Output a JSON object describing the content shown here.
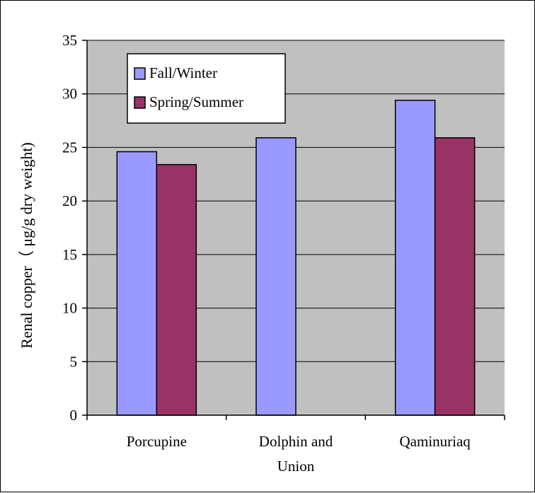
{
  "chart_data": {
    "type": "bar",
    "ylabel": "Renal copper（ μg/g dry weight)",
    "ylim": [
      0,
      35
    ],
    "y_ticks": [
      0,
      5,
      10,
      15,
      20,
      25,
      30,
      35
    ],
    "grid": true,
    "plot_background": "#c0c0c0",
    "categories": [
      [
        "Porcupine"
      ],
      [
        "Dolphin and",
        "Union"
      ],
      [
        "Qaminuriaq"
      ]
    ],
    "series": [
      {
        "name": "Fall/Winter",
        "color": "#9999ff",
        "values": [
          24.6,
          25.9,
          29.4
        ]
      },
      {
        "name": "Spring/Summer",
        "color": "#993366",
        "values": [
          23.4,
          null,
          25.9
        ]
      }
    ],
    "legend_position": "top-left"
  }
}
